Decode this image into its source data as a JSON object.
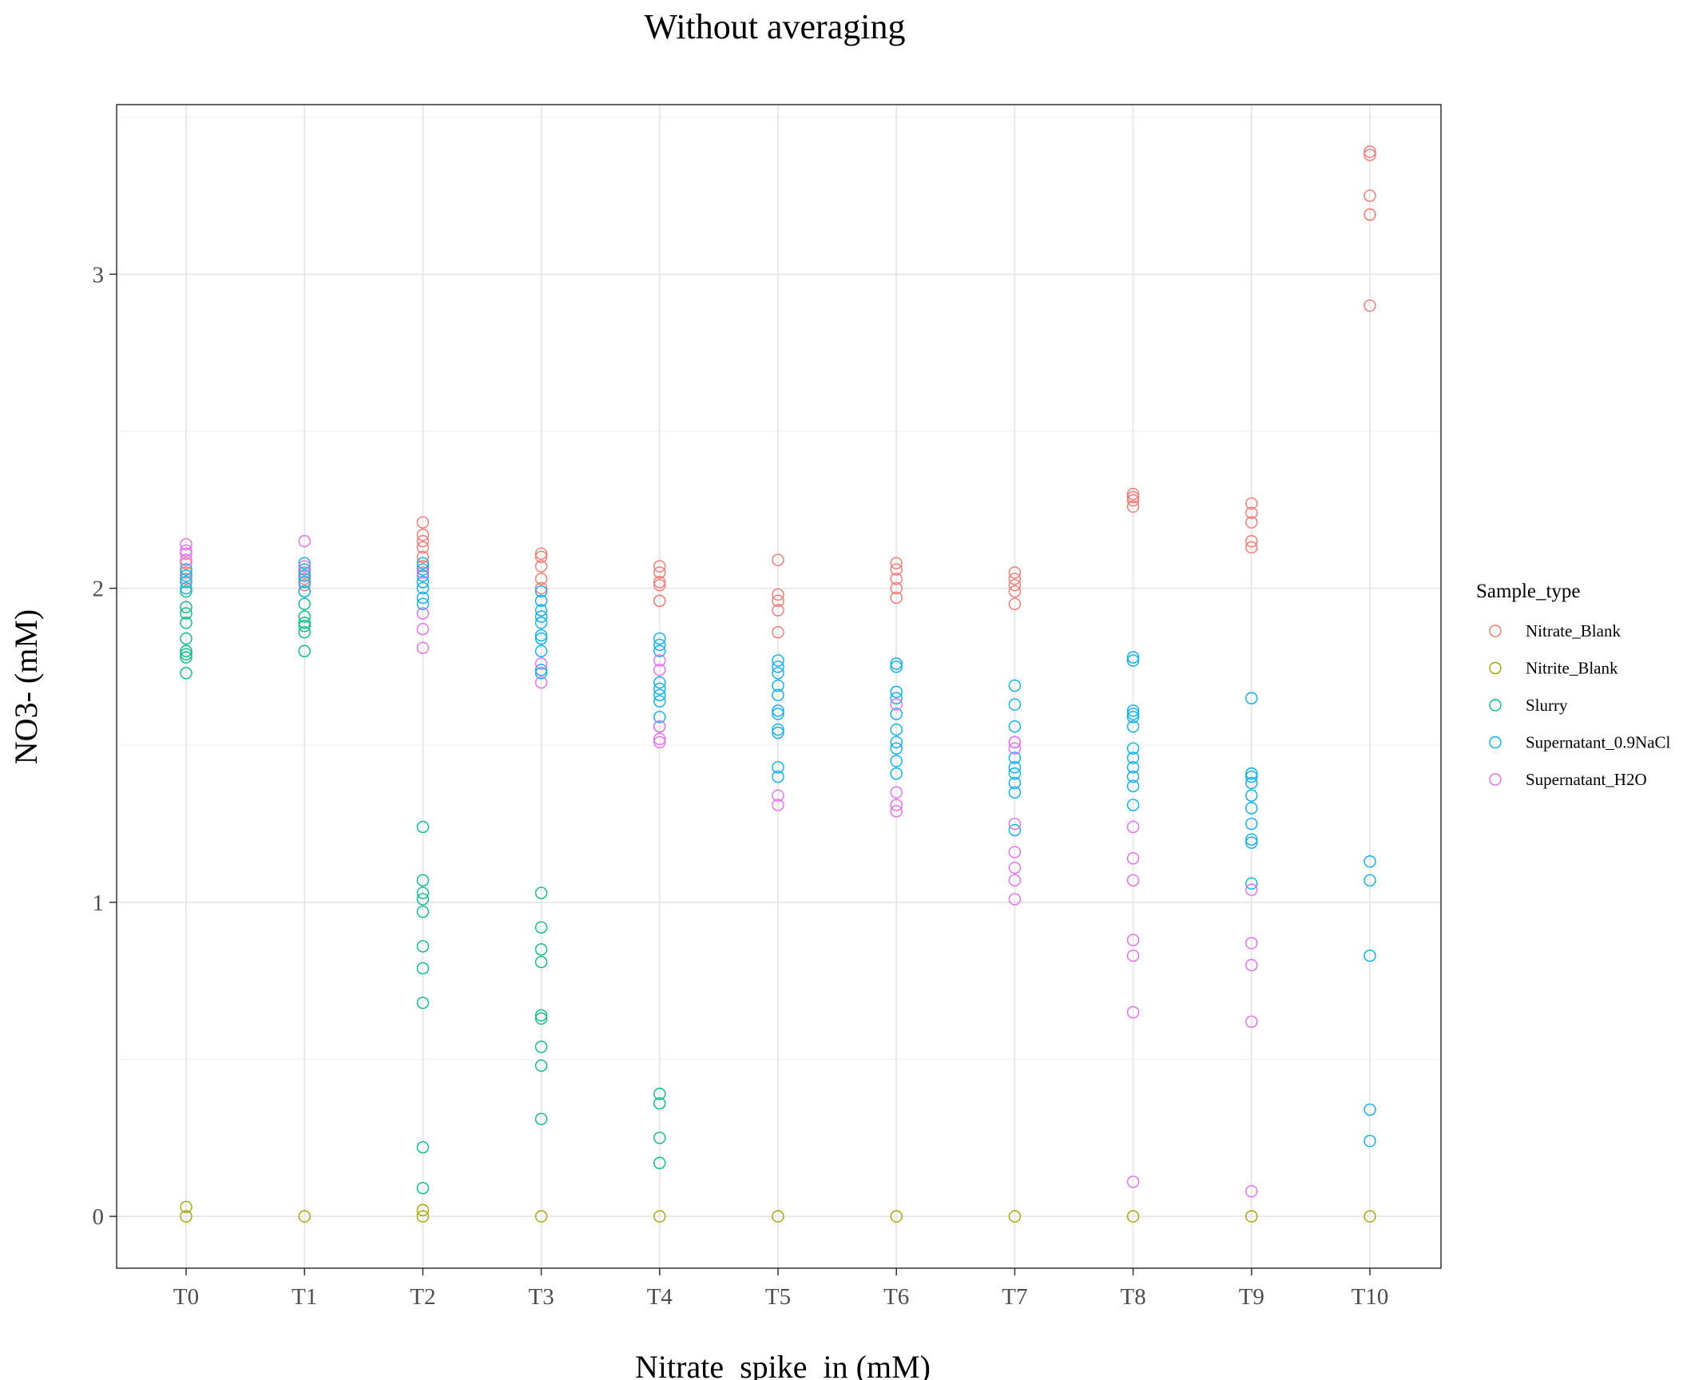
{
  "chart_data": {
    "type": "scatter",
    "title": "Without averaging",
    "xlabel": "Nitrate_spike_in (mM)",
    "ylabel": "NO3- (mM)",
    "categories": [
      "T0",
      "T1",
      "T2",
      "T3",
      "T4",
      "T5",
      "T6",
      "T7",
      "T8",
      "T9",
      "T10"
    ],
    "yticks": [
      0,
      1,
      2,
      3
    ],
    "ylim": [
      -0.165,
      3.54
    ],
    "grid": true,
    "marker": "open-circle",
    "legend": {
      "title": "Sample_type",
      "position": "right"
    },
    "series": [
      {
        "name": "Nitrate_Blank",
        "color": "#F8766D",
        "points": [
          [
            "T0",
            2.03
          ],
          [
            "T0",
            2.05
          ],
          [
            "T0",
            2.08
          ],
          [
            "T1",
            2.01
          ],
          [
            "T1",
            2.03
          ],
          [
            "T1",
            2.05
          ],
          [
            "T2",
            2.21
          ],
          [
            "T2",
            2.17
          ],
          [
            "T2",
            2.15
          ],
          [
            "T2",
            2.13
          ],
          [
            "T2",
            2.1
          ],
          [
            "T2",
            2.07
          ],
          [
            "T3",
            2.11
          ],
          [
            "T3",
            2.1
          ],
          [
            "T3",
            2.07
          ],
          [
            "T3",
            2.03
          ],
          [
            "T3",
            2.0
          ],
          [
            "T4",
            2.07
          ],
          [
            "T4",
            2.05
          ],
          [
            "T4",
            2.02
          ],
          [
            "T4",
            2.01
          ],
          [
            "T4",
            1.96
          ],
          [
            "T4",
            1.96
          ],
          [
            "T5",
            2.09
          ],
          [
            "T5",
            1.98
          ],
          [
            "T5",
            1.96
          ],
          [
            "T5",
            1.93
          ],
          [
            "T5",
            1.86
          ],
          [
            "T6",
            2.08
          ],
          [
            "T6",
            2.06
          ],
          [
            "T6",
            2.03
          ],
          [
            "T6",
            2.0
          ],
          [
            "T6",
            1.97
          ],
          [
            "T7",
            2.05
          ],
          [
            "T7",
            2.03
          ],
          [
            "T7",
            2.01
          ],
          [
            "T7",
            1.99
          ],
          [
            "T7",
            1.95
          ],
          [
            "T8",
            2.3
          ],
          [
            "T8",
            2.29
          ],
          [
            "T8",
            2.28
          ],
          [
            "T8",
            2.26
          ],
          [
            "T9",
            2.27
          ],
          [
            "T9",
            2.24
          ],
          [
            "T9",
            2.21
          ],
          [
            "T9",
            2.15
          ],
          [
            "T9",
            2.13
          ],
          [
            "T10",
            3.39
          ],
          [
            "T10",
            3.38
          ],
          [
            "T10",
            3.25
          ],
          [
            "T10",
            3.19
          ],
          [
            "T10",
            3.19
          ],
          [
            "T10",
            2.9
          ]
        ]
      },
      {
        "name": "Nitrite_Blank",
        "color": "#A3A500",
        "points": [
          [
            "T0",
            0.03
          ],
          [
            "T0",
            0.0
          ],
          [
            "T1",
            0.0
          ],
          [
            "T2",
            0.02
          ],
          [
            "T2",
            0.0
          ],
          [
            "T3",
            0.0
          ],
          [
            "T4",
            0.0
          ],
          [
            "T5",
            0.0
          ],
          [
            "T6",
            0.0
          ],
          [
            "T7",
            0.0
          ],
          [
            "T8",
            0.0
          ],
          [
            "T9",
            0.0
          ],
          [
            "T10",
            0.0
          ]
        ]
      },
      {
        "name": "Slurry",
        "color": "#00BF7D",
        "points": [
          [
            "T0",
            1.99
          ],
          [
            "T0",
            1.94
          ],
          [
            "T0",
            1.92
          ],
          [
            "T0",
            1.89
          ],
          [
            "T0",
            1.84
          ],
          [
            "T0",
            1.8
          ],
          [
            "T0",
            1.79
          ],
          [
            "T0",
            1.78
          ],
          [
            "T0",
            1.73
          ],
          [
            "T1",
            1.99
          ],
          [
            "T1",
            1.95
          ],
          [
            "T1",
            1.91
          ],
          [
            "T1",
            1.89
          ],
          [
            "T1",
            1.88
          ],
          [
            "T1",
            1.86
          ],
          [
            "T1",
            1.8
          ],
          [
            "T2",
            1.24
          ],
          [
            "T2",
            1.07
          ],
          [
            "T2",
            1.03
          ],
          [
            "T2",
            1.01
          ],
          [
            "T2",
            0.97
          ],
          [
            "T2",
            0.86
          ],
          [
            "T2",
            0.79
          ],
          [
            "T2",
            0.68
          ],
          [
            "T2",
            0.22
          ],
          [
            "T2",
            0.09
          ],
          [
            "T3",
            1.03
          ],
          [
            "T3",
            0.92
          ],
          [
            "T3",
            0.85
          ],
          [
            "T3",
            0.81
          ],
          [
            "T3",
            0.64
          ],
          [
            "T3",
            0.63
          ],
          [
            "T3",
            0.54
          ],
          [
            "T3",
            0.48
          ],
          [
            "T3",
            0.31
          ],
          [
            "T4",
            0.39
          ],
          [
            "T4",
            0.36
          ],
          [
            "T4",
            0.25
          ],
          [
            "T4",
            0.17
          ]
        ]
      },
      {
        "name": "Supernatant_0.9NaCl",
        "color": "#00B0F6",
        "points": [
          [
            "T0",
            2.06
          ],
          [
            "T0",
            2.04
          ],
          [
            "T0",
            2.02
          ],
          [
            "T0",
            2.0
          ],
          [
            "T1",
            2.08
          ],
          [
            "T1",
            2.06
          ],
          [
            "T1",
            2.04
          ],
          [
            "T1",
            2.02
          ],
          [
            "T1",
            1.99
          ],
          [
            "T2",
            2.08
          ],
          [
            "T2",
            2.06
          ],
          [
            "T2",
            2.04
          ],
          [
            "T2",
            2.02
          ],
          [
            "T2",
            2.0
          ],
          [
            "T2",
            1.97
          ],
          [
            "T2",
            1.95
          ],
          [
            "T3",
            1.99
          ],
          [
            "T3",
            1.96
          ],
          [
            "T3",
            1.93
          ],
          [
            "T3",
            1.91
          ],
          [
            "T3",
            1.89
          ],
          [
            "T3",
            1.85
          ],
          [
            "T3",
            1.84
          ],
          [
            "T3",
            1.8
          ],
          [
            "T3",
            1.74
          ],
          [
            "T3",
            1.73
          ],
          [
            "T4",
            1.84
          ],
          [
            "T4",
            1.82
          ],
          [
            "T4",
            1.8
          ],
          [
            "T4",
            1.7
          ],
          [
            "T4",
            1.68
          ],
          [
            "T4",
            1.66
          ],
          [
            "T4",
            1.64
          ],
          [
            "T4",
            1.59
          ],
          [
            "T4",
            1.56
          ],
          [
            "T5",
            1.77
          ],
          [
            "T5",
            1.75
          ],
          [
            "T5",
            1.73
          ],
          [
            "T5",
            1.69
          ],
          [
            "T5",
            1.66
          ],
          [
            "T5",
            1.61
          ],
          [
            "T5",
            1.6
          ],
          [
            "T5",
            1.55
          ],
          [
            "T5",
            1.54
          ],
          [
            "T5",
            1.43
          ],
          [
            "T5",
            1.4
          ],
          [
            "T6",
            1.76
          ],
          [
            "T6",
            1.75
          ],
          [
            "T6",
            1.67
          ],
          [
            "T6",
            1.65
          ],
          [
            "T6",
            1.6
          ],
          [
            "T6",
            1.55
          ],
          [
            "T6",
            1.51
          ],
          [
            "T6",
            1.49
          ],
          [
            "T6",
            1.45
          ],
          [
            "T6",
            1.41
          ],
          [
            "T7",
            1.69
          ],
          [
            "T7",
            1.63
          ],
          [
            "T7",
            1.56
          ],
          [
            "T7",
            1.51
          ],
          [
            "T7",
            1.46
          ],
          [
            "T7",
            1.43
          ],
          [
            "T7",
            1.41
          ],
          [
            "T7",
            1.38
          ],
          [
            "T7",
            1.35
          ],
          [
            "T7",
            1.23
          ],
          [
            "T8",
            1.77
          ],
          [
            "T8",
            1.78
          ],
          [
            "T8",
            1.61
          ],
          [
            "T8",
            1.6
          ],
          [
            "T8",
            1.59
          ],
          [
            "T8",
            1.56
          ],
          [
            "T8",
            1.49
          ],
          [
            "T8",
            1.46
          ],
          [
            "T8",
            1.43
          ],
          [
            "T8",
            1.4
          ],
          [
            "T8",
            1.37
          ],
          [
            "T8",
            1.31
          ],
          [
            "T9",
            1.65
          ],
          [
            "T9",
            1.41
          ],
          [
            "T9",
            1.4
          ],
          [
            "T9",
            1.38
          ],
          [
            "T9",
            1.34
          ],
          [
            "T9",
            1.3
          ],
          [
            "T9",
            1.25
          ],
          [
            "T9",
            1.2
          ],
          [
            "T9",
            1.19
          ],
          [
            "T9",
            1.06
          ],
          [
            "T10",
            1.13
          ],
          [
            "T10",
            1.07
          ],
          [
            "T10",
            0.83
          ],
          [
            "T10",
            0.34
          ],
          [
            "T10",
            0.24
          ]
        ]
      },
      {
        "name": "Supernatant_H2O",
        "color": "#E76BF3",
        "points": [
          [
            "T0",
            2.14
          ],
          [
            "T0",
            2.12
          ],
          [
            "T0",
            2.11
          ],
          [
            "T0",
            2.09
          ],
          [
            "T1",
            2.15
          ],
          [
            "T1",
            2.07
          ],
          [
            "T2",
            2.05
          ],
          [
            "T2",
            1.92
          ],
          [
            "T2",
            1.87
          ],
          [
            "T2",
            1.81
          ],
          [
            "T3",
            1.76
          ],
          [
            "T3",
            1.7
          ],
          [
            "T4",
            1.77
          ],
          [
            "T4",
            1.74
          ],
          [
            "T4",
            1.56
          ],
          [
            "T4",
            1.52
          ],
          [
            "T4",
            1.51
          ],
          [
            "T5",
            1.34
          ],
          [
            "T5",
            1.31
          ],
          [
            "T6",
            1.63
          ],
          [
            "T6",
            1.35
          ],
          [
            "T6",
            1.31
          ],
          [
            "T6",
            1.29
          ],
          [
            "T7",
            1.51
          ],
          [
            "T7",
            1.49
          ],
          [
            "T7",
            1.25
          ],
          [
            "T7",
            1.16
          ],
          [
            "T7",
            1.11
          ],
          [
            "T7",
            1.07
          ],
          [
            "T7",
            1.01
          ],
          [
            "T8",
            1.24
          ],
          [
            "T8",
            1.14
          ],
          [
            "T8",
            1.07
          ],
          [
            "T8",
            0.88
          ],
          [
            "T8",
            0.83
          ],
          [
            "T8",
            0.65
          ],
          [
            "T8",
            0.11
          ],
          [
            "T9",
            1.04
          ],
          [
            "T9",
            0.87
          ],
          [
            "T9",
            0.8
          ],
          [
            "T9",
            0.62
          ],
          [
            "T9",
            0.08
          ]
        ]
      }
    ]
  }
}
